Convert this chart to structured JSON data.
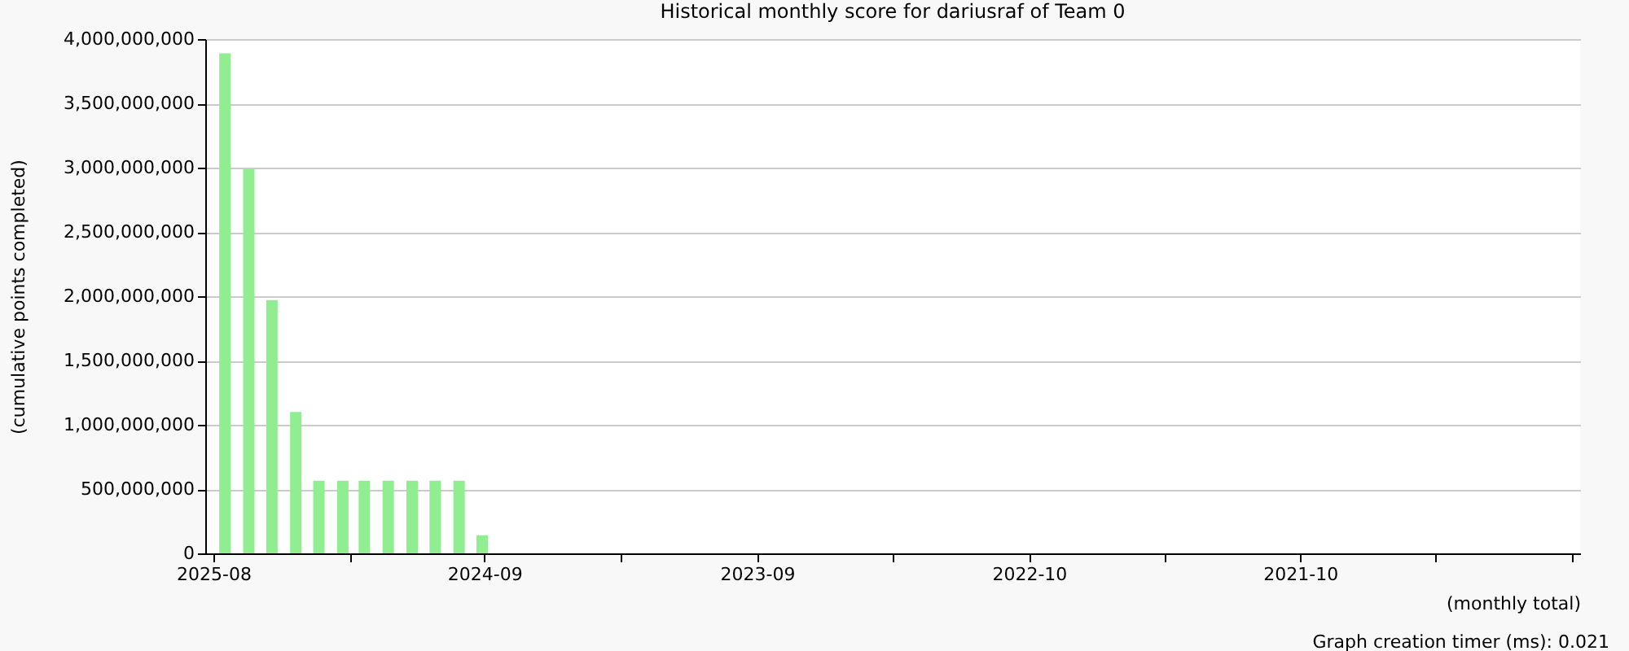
{
  "chart_data": {
    "type": "bar",
    "title": "Historical monthly score for dariusraf of Team 0",
    "xlabel": "(monthly total)",
    "ylabel": "(cumulative points completed)",
    "annotations": [
      "Graph creation timer (ms): 0.021"
    ],
    "x": [
      "2025-08",
      "2025-07",
      "2025-06",
      "2025-05",
      "2025-04",
      "2025-03",
      "2025-02",
      "2025-01",
      "2024-12",
      "2024-11",
      "2024-10",
      "2024-09"
    ],
    "series": [
      {
        "color": "#90ee90",
        "values": [
          3890000000,
          2990000000,
          1970000000,
          1100000000,
          565000000,
          565000000,
          565000000,
          565000000,
          565000000,
          565000000,
          565000000,
          140000000
        ]
      }
    ],
    "xlim": [
      "2025-08-16",
      "2020-10-17"
    ],
    "xticks": [
      {
        "value": "2025-08-16",
        "label": "2025-08"
      },
      {
        "value": "2025-02-20",
        "label": null
      },
      {
        "value": "2024-08-29",
        "label": "2024-09"
      },
      {
        "value": "2024-03-05",
        "label": null
      },
      {
        "value": "2023-09-10",
        "label": "2023-09"
      },
      {
        "value": "2023-03-17",
        "label": null
      },
      {
        "value": "2022-09-22",
        "label": "2022-10"
      },
      {
        "value": "2022-03-30",
        "label": null
      },
      {
        "value": "2021-10-05",
        "label": "2021-10"
      },
      {
        "value": "2021-04-12",
        "label": null
      },
      {
        "value": "2020-10-17",
        "label": null
      }
    ],
    "ylim": [
      0,
      4000000000
    ],
    "yticks": [
      {
        "value": 0,
        "label": "0"
      },
      {
        "value": 500000000,
        "label": "500,000,000"
      },
      {
        "value": 1000000000,
        "label": "1,000,000,000"
      },
      {
        "value": 1500000000,
        "label": "1,500,000,000"
      },
      {
        "value": 2000000000,
        "label": "2,000,000,000"
      },
      {
        "value": 2500000000,
        "label": "2,500,000,000"
      },
      {
        "value": 3000000000,
        "label": "3,000,000,000"
      },
      {
        "value": 3500000000,
        "label": "3,500,000,000"
      },
      {
        "value": 4000000000,
        "label": "4,000,000,000"
      }
    ],
    "grid": "y",
    "legend": false
  }
}
